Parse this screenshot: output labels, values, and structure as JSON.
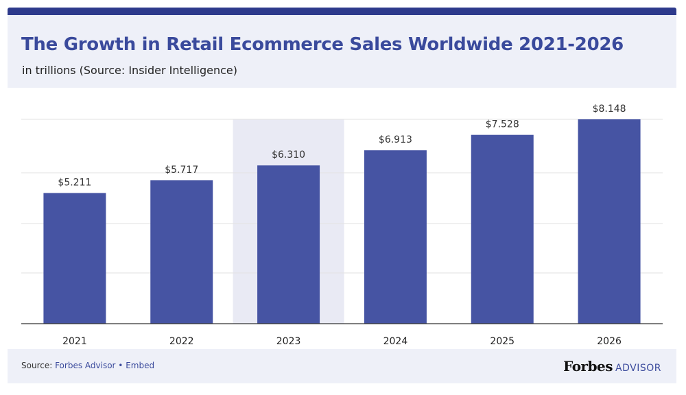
{
  "header": {
    "title": "The Growth in Retail Ecommerce Sales Worldwide 2021-2026",
    "subtitle": "in trillions (Source: Insider Intelligence)"
  },
  "footer": {
    "source_prefix": "Source: ",
    "source_link": "Forbes Advisor",
    "separator": " • ",
    "embed_link": "Embed",
    "brand_name": "Forbes",
    "brand_suffix": "ADVISOR"
  },
  "colors": {
    "bar": "#4654a3",
    "highlight_band": "#e9eaf4",
    "title": "#3a4a9c",
    "grid": "#e2e2e2"
  },
  "chart_data": {
    "type": "bar",
    "title": "The Growth in Retail Ecommerce Sales Worldwide 2021-2026",
    "subtitle": "in trillions (Source: Insider Intelligence)",
    "categories": [
      "2021",
      "2022",
      "2023",
      "2024",
      "2025",
      "2026"
    ],
    "values": [
      5.211,
      5.717,
      6.31,
      6.913,
      7.528,
      8.148
    ],
    "data_labels": [
      "$5.211",
      "$5.717",
      "$6.310",
      "$6.913",
      "$7.528",
      "$8.148"
    ],
    "highlighted_category": "2023",
    "ylim": [
      0,
      8.148
    ],
    "grid": true,
    "legend": "none",
    "xlabel": "",
    "ylabel": ""
  }
}
